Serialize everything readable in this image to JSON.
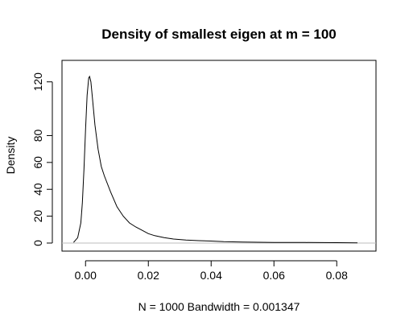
{
  "chart_data": {
    "type": "line",
    "title": "Density of smallest eigen at m = 100",
    "xlabel": "N = 1000   Bandwidth = 0.001347",
    "ylabel": "Density",
    "xlim": [
      -0.0075,
      0.0925
    ],
    "ylim": [
      -6,
      136
    ],
    "x_ticks": [
      0.0,
      0.02,
      0.04,
      0.06,
      0.08
    ],
    "x_tick_labels": [
      "0.00",
      "0.02",
      "0.04",
      "0.06",
      "0.08"
    ],
    "y_ticks": [
      0,
      20,
      40,
      60,
      80,
      120
    ],
    "y_tick_labels": [
      "0",
      "20",
      "40",
      "60",
      "80",
      "120"
    ],
    "baseline": 0,
    "series": [
      {
        "x": [
          -0.0038,
          -0.0025,
          -0.0015,
          -0.001,
          -0.0005,
          0.0,
          0.0005,
          0.001,
          0.0013,
          0.0017,
          0.0022,
          0.003,
          0.004,
          0.005,
          0.006,
          0.008,
          0.01,
          0.012,
          0.014,
          0.016,
          0.018,
          0.02,
          0.022,
          0.025,
          0.028,
          0.032,
          0.036,
          0.04,
          0.044,
          0.05,
          0.06,
          0.07,
          0.08,
          0.0866
        ],
        "y": [
          0.5,
          4,
          15,
          30,
          55,
          85,
          110,
          123,
          124,
          120,
          108,
          88,
          70,
          57,
          50,
          38,
          27,
          20,
          15,
          12,
          9.5,
          7,
          5.5,
          4,
          3,
          2.2,
          1.8,
          1.5,
          1.0,
          0.7,
          0.5,
          0.4,
          0.3,
          0.2
        ]
      }
    ]
  }
}
